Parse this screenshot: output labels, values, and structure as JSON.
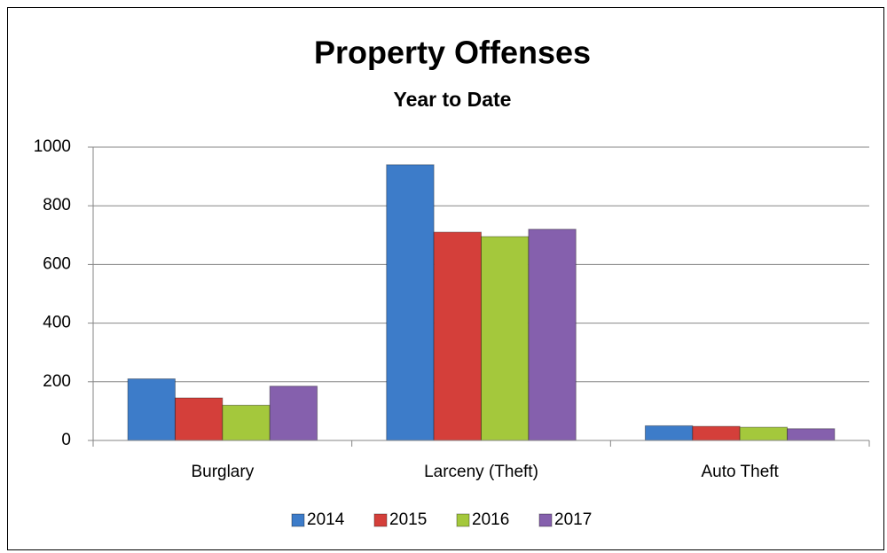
{
  "chart_data": {
    "type": "bar",
    "title": "Property Offenses",
    "subtitle": "Year to Date",
    "categories": [
      "Burglary",
      "Larceny (Theft)",
      "Auto Theft"
    ],
    "series": [
      {
        "name": "2014",
        "color": "#3d7cc9",
        "values": [
          210,
          940,
          50
        ]
      },
      {
        "name": "2015",
        "color": "#d43f3a",
        "values": [
          145,
          710,
          48
        ]
      },
      {
        "name": "2016",
        "color": "#a4c83c",
        "values": [
          120,
          695,
          45
        ]
      },
      {
        "name": "2017",
        "color": "#8560ad",
        "values": [
          185,
          720,
          40
        ]
      }
    ],
    "ylim": [
      0,
      1000
    ],
    "yticks": [
      0,
      200,
      400,
      600,
      800,
      1000
    ],
    "grid": true,
    "legend": "bottom"
  }
}
